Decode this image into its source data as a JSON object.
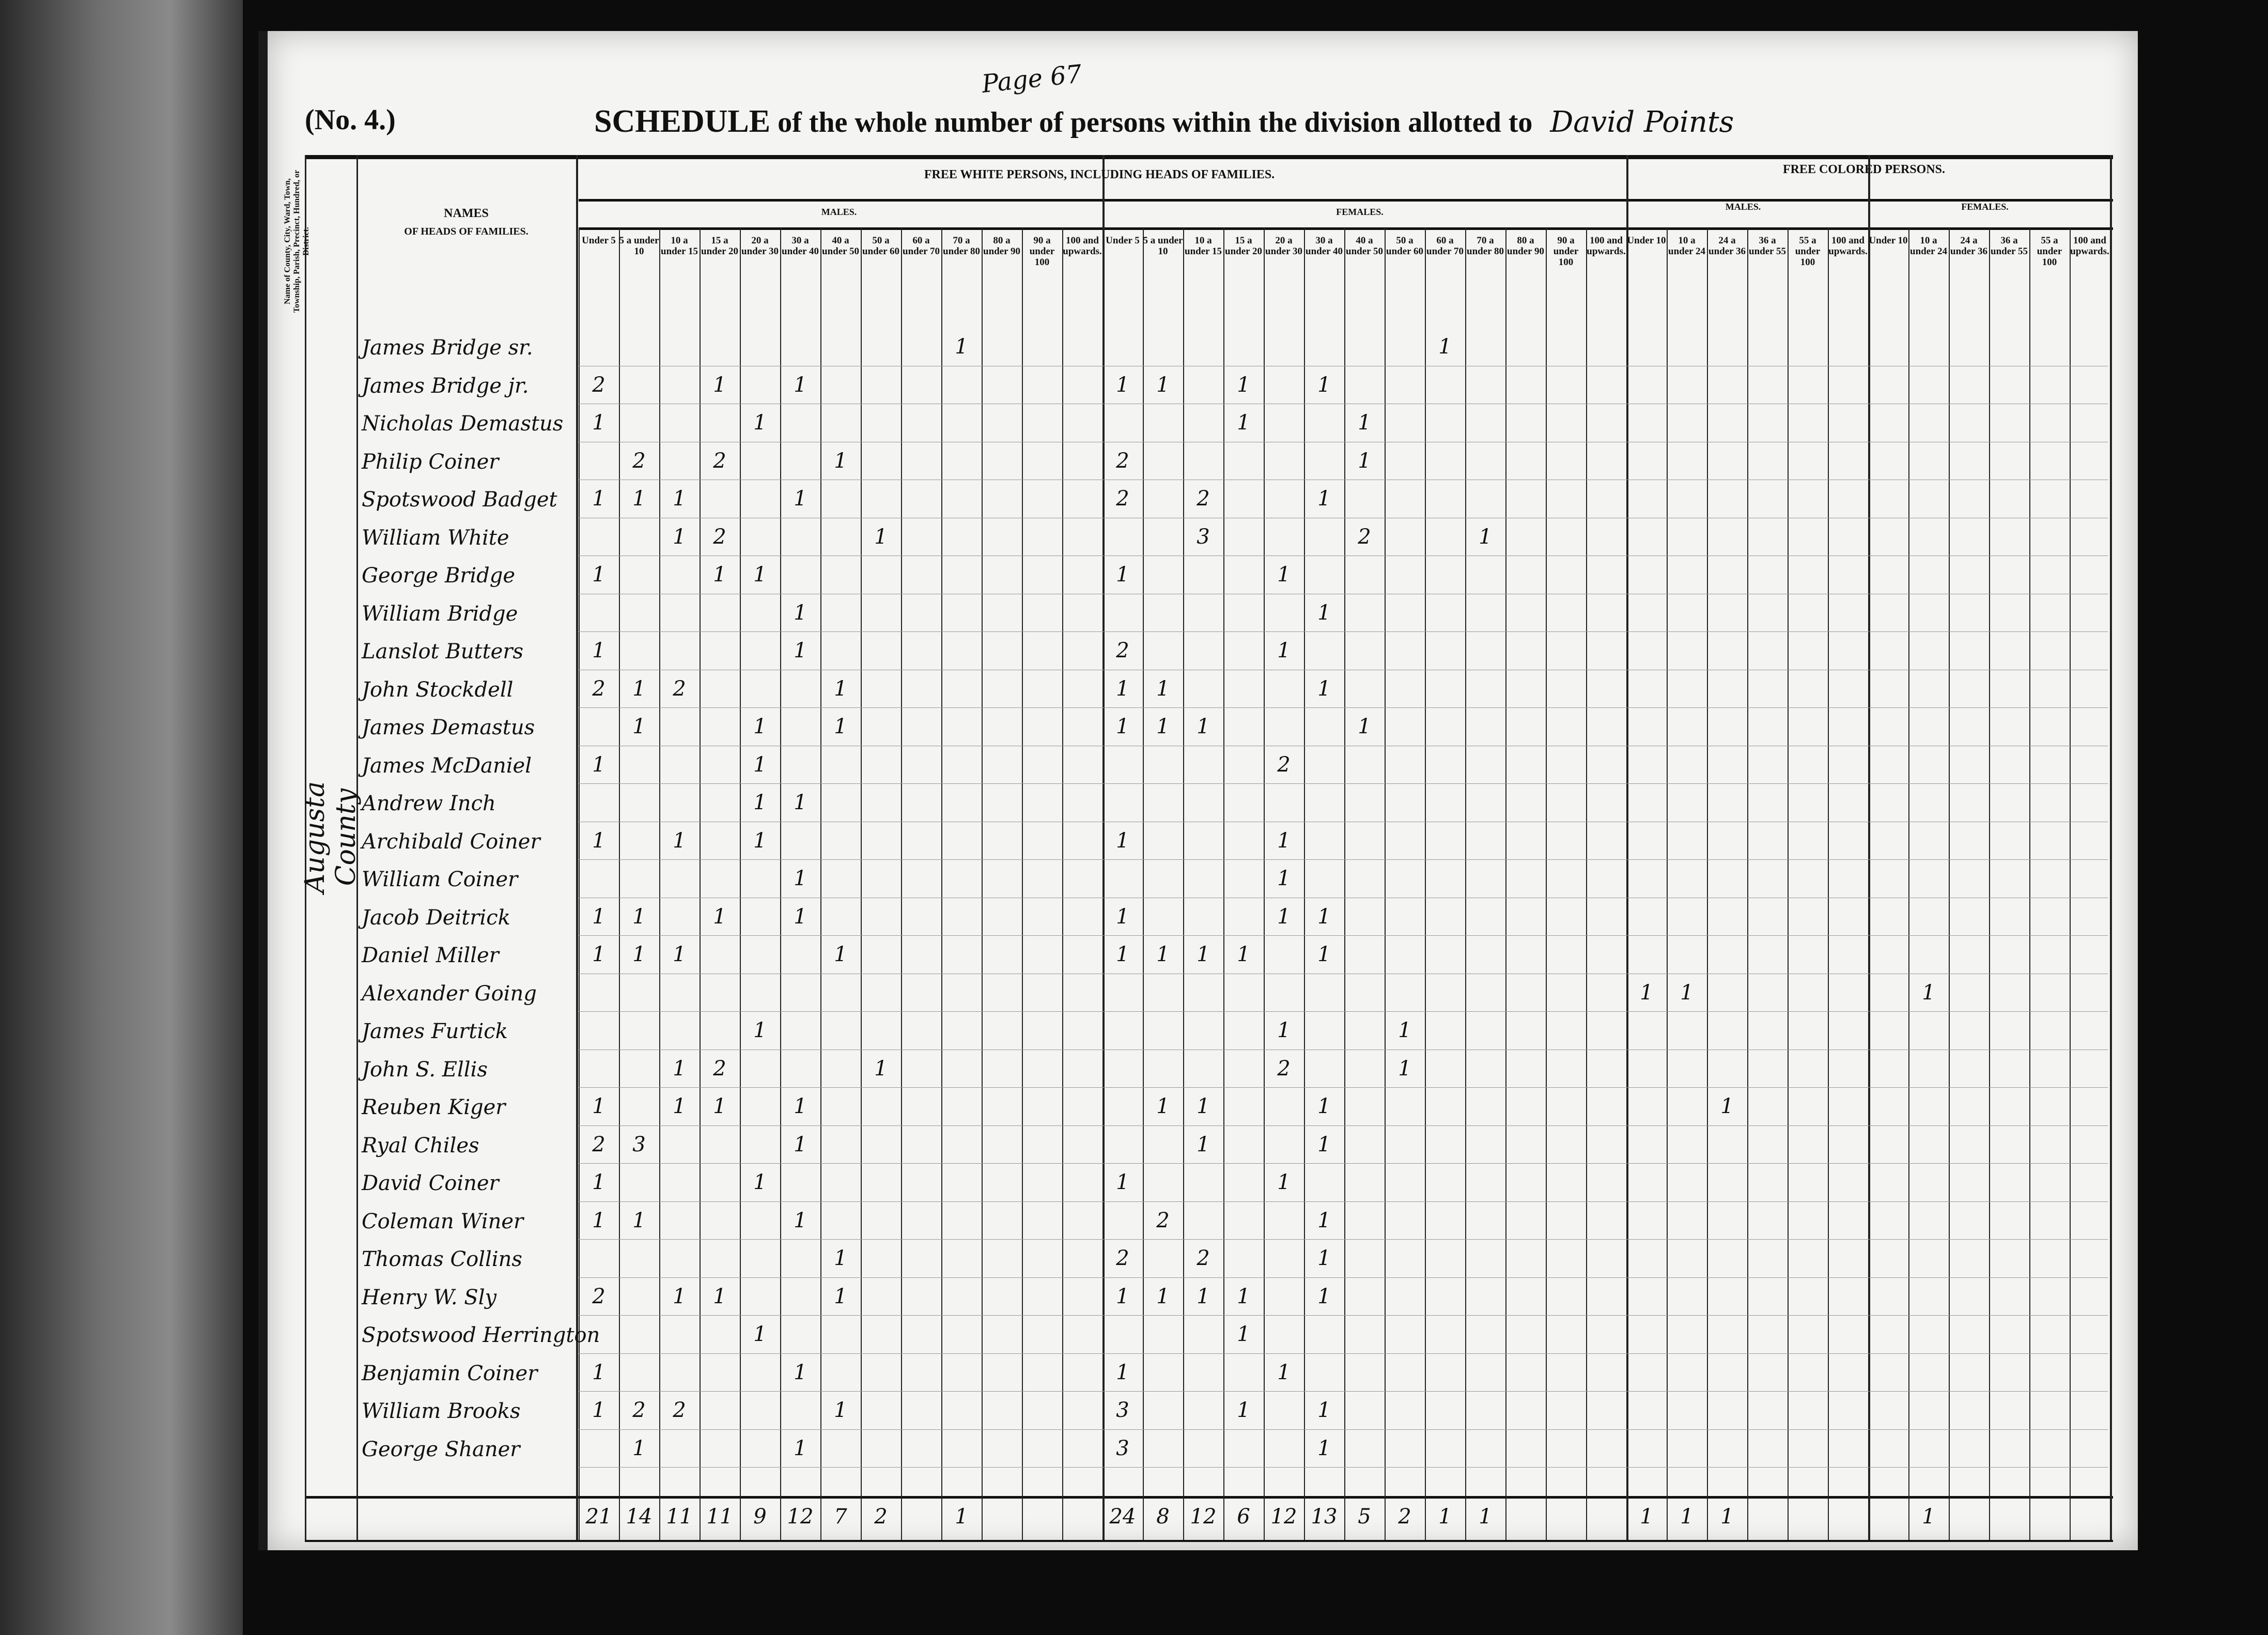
{
  "header": {
    "form_number": "(No. 4.)",
    "page_note": "Page 67",
    "title_prefix": "SCHEDULE",
    "title_rest": "of the whole number of persons within the division allotted to",
    "assistant_name": "David Points"
  },
  "columns": {
    "place_header": "Name of County, City, Ward, Town, Township, Parish, Precinct, Hundred, or District.",
    "names_header_1": "NAMES",
    "names_header_2": "OF HEADS OF FAMILIES.",
    "free_white_header": "FREE WHITE PERSONS, INCLUDING HEADS OF FAMILIES.",
    "free_colored_header": "FREE COLORED PERSONS.",
    "males": "MALES.",
    "females": "FEMALES.",
    "white_age_groups": [
      "Under 5",
      "5 a under 10",
      "10 a under 15",
      "15 a under 20",
      "20 a under 30",
      "30 a under 40",
      "40 a under 50",
      "50 a under 60",
      "60 a under 70",
      "70 a under 80",
      "80 a under 90",
      "90 a under 100",
      "100 and upwards."
    ],
    "colored_age_groups": [
      "Under 10",
      "10 a under 24",
      "24 a under 36",
      "36 a under 55",
      "55 a under 100",
      "100 and upwards."
    ]
  },
  "place": "Augusta County",
  "rows": [
    {
      "name": "James Bridge sr.",
      "wm": [
        "",
        "",
        "",
        "",
        "",
        "",
        "",
        "",
        "",
        "1",
        "",
        "",
        ""
      ],
      "wf": [
        "",
        "",
        "",
        "",
        "",
        "",
        "",
        "",
        "1",
        "",
        "",
        "",
        ""
      ],
      "cm": [
        "",
        "",
        "",
        "",
        "",
        ""
      ],
      "cf": [
        "",
        "",
        "",
        "",
        "",
        ""
      ]
    },
    {
      "name": "James Bridge jr.",
      "wm": [
        "2",
        "",
        "",
        "1",
        "",
        "1",
        "",
        "",
        "",
        "",
        "",
        "",
        ""
      ],
      "wf": [
        "1",
        "1",
        "",
        "1",
        "",
        "1",
        "",
        "",
        "",
        "",
        "",
        "",
        ""
      ],
      "cm": [
        "",
        "",
        "",
        "",
        "",
        ""
      ],
      "cf": [
        "",
        "",
        "",
        "",
        "",
        ""
      ]
    },
    {
      "name": "Nicholas Demastus",
      "wm": [
        "1",
        "",
        "",
        "",
        "1",
        "",
        "",
        "",
        "",
        "",
        "",
        "",
        ""
      ],
      "wf": [
        "",
        "",
        "",
        "1",
        "",
        "",
        "1",
        "",
        "",
        "",
        "",
        "",
        ""
      ],
      "cm": [
        "",
        "",
        "",
        "",
        "",
        ""
      ],
      "cf": [
        "",
        "",
        "",
        "",
        "",
        ""
      ]
    },
    {
      "name": "Philip Coiner",
      "wm": [
        "",
        "2",
        "",
        "2",
        "",
        "",
        "1",
        "",
        "",
        "",
        "",
        "",
        ""
      ],
      "wf": [
        "2",
        "",
        "",
        "",
        "",
        "",
        "1",
        "",
        "",
        "",
        "",
        "",
        ""
      ],
      "cm": [
        "",
        "",
        "",
        "",
        "",
        ""
      ],
      "cf": [
        "",
        "",
        "",
        "",
        "",
        ""
      ]
    },
    {
      "name": "Spotswood Badget",
      "wm": [
        "1",
        "1",
        "1",
        "",
        "",
        "1",
        "",
        "",
        "",
        "",
        "",
        "",
        ""
      ],
      "wf": [
        "2",
        "",
        "2",
        "",
        "",
        "1",
        "",
        "",
        "",
        "",
        "",
        "",
        ""
      ],
      "cm": [
        "",
        "",
        "",
        "",
        "",
        ""
      ],
      "cf": [
        "",
        "",
        "",
        "",
        "",
        ""
      ]
    },
    {
      "name": "William White",
      "wm": [
        "",
        "",
        "1",
        "2",
        "",
        "",
        "",
        "1",
        "",
        "",
        "",
        "",
        ""
      ],
      "wf": [
        "",
        "",
        "3",
        "",
        "",
        "",
        "2",
        "",
        "",
        "1",
        "",
        "",
        ""
      ],
      "cm": [
        "",
        "",
        "",
        "",
        "",
        ""
      ],
      "cf": [
        "",
        "",
        "",
        "",
        "",
        ""
      ]
    },
    {
      "name": "George Bridge",
      "wm": [
        "1",
        "",
        "",
        "1",
        "1",
        "",
        "",
        "",
        "",
        "",
        "",
        "",
        ""
      ],
      "wf": [
        "1",
        "",
        "",
        "",
        "1",
        "",
        "",
        "",
        "",
        "",
        "",
        "",
        ""
      ],
      "cm": [
        "",
        "",
        "",
        "",
        "",
        ""
      ],
      "cf": [
        "",
        "",
        "",
        "",
        "",
        ""
      ]
    },
    {
      "name": "William Bridge",
      "wm": [
        "",
        "",
        "",
        "",
        "",
        "1",
        "",
        "",
        "",
        "",
        "",
        "",
        ""
      ],
      "wf": [
        "",
        "",
        "",
        "",
        "",
        "1",
        "",
        "",
        "",
        "",
        "",
        "",
        ""
      ],
      "cm": [
        "",
        "",
        "",
        "",
        "",
        ""
      ],
      "cf": [
        "",
        "",
        "",
        "",
        "",
        ""
      ]
    },
    {
      "name": "Lanslot Butters",
      "wm": [
        "1",
        "",
        "",
        "",
        "",
        "1",
        "",
        "",
        "",
        "",
        "",
        "",
        ""
      ],
      "wf": [
        "2",
        "",
        "",
        "",
        "1",
        "",
        "",
        "",
        "",
        "",
        "",
        "",
        ""
      ],
      "cm": [
        "",
        "",
        "",
        "",
        "",
        ""
      ],
      "cf": [
        "",
        "",
        "",
        "",
        "",
        ""
      ]
    },
    {
      "name": "John Stockdell",
      "wm": [
        "2",
        "1",
        "2",
        "",
        "",
        "",
        "1",
        "",
        "",
        "",
        "",
        "",
        ""
      ],
      "wf": [
        "1",
        "1",
        "",
        "",
        "",
        "1",
        "",
        "",
        "",
        "",
        "",
        "",
        ""
      ],
      "cm": [
        "",
        "",
        "",
        "",
        "",
        ""
      ],
      "cf": [
        "",
        "",
        "",
        "",
        "",
        ""
      ]
    },
    {
      "name": "James Demastus",
      "wm": [
        "",
        "1",
        "",
        "",
        "1",
        "",
        "1",
        "",
        "",
        "",
        "",
        "",
        ""
      ],
      "wf": [
        "1",
        "1",
        "1",
        "",
        "",
        "",
        "1",
        "",
        "",
        "",
        "",
        "",
        ""
      ],
      "cm": [
        "",
        "",
        "",
        "",
        "",
        ""
      ],
      "cf": [
        "",
        "",
        "",
        "",
        "",
        ""
      ]
    },
    {
      "name": "James McDaniel",
      "wm": [
        "1",
        "",
        "",
        "",
        "1",
        "",
        "",
        "",
        "",
        "",
        "",
        "",
        ""
      ],
      "wf": [
        "",
        "",
        "",
        "",
        "2",
        "",
        "",
        "",
        "",
        "",
        "",
        "",
        ""
      ],
      "cm": [
        "",
        "",
        "",
        "",
        "",
        ""
      ],
      "cf": [
        "",
        "",
        "",
        "",
        "",
        ""
      ]
    },
    {
      "name": "Andrew Inch",
      "wm": [
        "",
        "",
        "",
        "",
        "1",
        "1",
        "",
        "",
        "",
        "",
        "",
        "",
        ""
      ],
      "wf": [
        "",
        "",
        "",
        "",
        "",
        "",
        "",
        "",
        "",
        "",
        "",
        "",
        ""
      ],
      "cm": [
        "",
        "",
        "",
        "",
        "",
        ""
      ],
      "cf": [
        "",
        "",
        "",
        "",
        "",
        ""
      ]
    },
    {
      "name": "Archibald Coiner",
      "wm": [
        "1",
        "",
        "1",
        "",
        "1",
        "",
        "",
        "",
        "",
        "",
        "",
        "",
        ""
      ],
      "wf": [
        "1",
        "",
        "",
        "",
        "1",
        "",
        "",
        "",
        "",
        "",
        "",
        "",
        ""
      ],
      "cm": [
        "",
        "",
        "",
        "",
        "",
        ""
      ],
      "cf": [
        "",
        "",
        "",
        "",
        "",
        ""
      ]
    },
    {
      "name": "William Coiner",
      "wm": [
        "",
        "",
        "",
        "",
        "",
        "1",
        "",
        "",
        "",
        "",
        "",
        "",
        ""
      ],
      "wf": [
        "",
        "",
        "",
        "",
        "1",
        "",
        "",
        "",
        "",
        "",
        "",
        "",
        ""
      ],
      "cm": [
        "",
        "",
        "",
        "",
        "",
        ""
      ],
      "cf": [
        "",
        "",
        "",
        "",
        "",
        ""
      ]
    },
    {
      "name": "Jacob Deitrick",
      "wm": [
        "1",
        "1",
        "",
        "1",
        "",
        "1",
        "",
        "",
        "",
        "",
        "",
        "",
        ""
      ],
      "wf": [
        "1",
        "",
        "",
        "",
        "1",
        "1",
        "",
        "",
        "",
        "",
        "",
        "",
        ""
      ],
      "cm": [
        "",
        "",
        "",
        "",
        "",
        ""
      ],
      "cf": [
        "",
        "",
        "",
        "",
        "",
        ""
      ]
    },
    {
      "name": "Daniel Miller",
      "wm": [
        "1",
        "1",
        "1",
        "",
        "",
        "",
        "1",
        "",
        "",
        "",
        "",
        "",
        ""
      ],
      "wf": [
        "1",
        "1",
        "1",
        "1",
        "",
        "1",
        "",
        "",
        "",
        "",
        "",
        "",
        ""
      ],
      "cm": [
        "",
        "",
        "",
        "",
        "",
        ""
      ],
      "cf": [
        "",
        "",
        "",
        "",
        "",
        ""
      ]
    },
    {
      "name": "Alexander Going",
      "wm": [
        "",
        "",
        "",
        "",
        "",
        "",
        "",
        "",
        "",
        "",
        "",
        "",
        ""
      ],
      "wf": [
        "",
        "",
        "",
        "",
        "",
        "",
        "",
        "",
        "",
        "",
        "",
        "",
        ""
      ],
      "cm": [
        "1",
        "1",
        "",
        "",
        "",
        ""
      ],
      "cf": [
        "",
        "1",
        "",
        "",
        "",
        ""
      ]
    },
    {
      "name": "James Furtick",
      "wm": [
        "",
        "",
        "",
        "",
        "1",
        "",
        "",
        "",
        "",
        "",
        "",
        "",
        ""
      ],
      "wf": [
        "",
        "",
        "",
        "",
        "1",
        "",
        "",
        "1",
        "",
        "",
        "",
        "",
        ""
      ],
      "cm": [
        "",
        "",
        "",
        "",
        "",
        ""
      ],
      "cf": [
        "",
        "",
        "",
        "",
        "",
        ""
      ]
    },
    {
      "name": "John S. Ellis",
      "wm": [
        "",
        "",
        "1",
        "2",
        "",
        "",
        "",
        "1",
        "",
        "",
        "",
        "",
        ""
      ],
      "wf": [
        "",
        "",
        "",
        "",
        "2",
        "",
        "",
        "1",
        "",
        "",
        "",
        "",
        ""
      ],
      "cm": [
        "",
        "",
        "",
        "",
        "",
        ""
      ],
      "cf": [
        "",
        "",
        "",
        "",
        "",
        ""
      ]
    },
    {
      "name": "Reuben Kiger",
      "wm": [
        "1",
        "",
        "1",
        "1",
        "",
        "1",
        "",
        "",
        "",
        "",
        "",
        "",
        ""
      ],
      "wf": [
        "",
        "1",
        "1",
        "",
        "",
        "1",
        "",
        "",
        "",
        "",
        "",
        "",
        ""
      ],
      "cm": [
        "",
        "",
        "1",
        "",
        "",
        ""
      ],
      "cf": [
        "",
        "",
        "",
        "",
        "",
        ""
      ]
    },
    {
      "name": "Ryal Chiles",
      "wm": [
        "2",
        "3",
        "",
        "",
        "",
        "1",
        "",
        "",
        "",
        "",
        "",
        "",
        ""
      ],
      "wf": [
        "",
        "",
        "1",
        "",
        "",
        "1",
        "",
        "",
        "",
        "",
        "",
        "",
        ""
      ],
      "cm": [
        "",
        "",
        "",
        "",
        "",
        ""
      ],
      "cf": [
        "",
        "",
        "",
        "",
        "",
        ""
      ]
    },
    {
      "name": "David Coiner",
      "wm": [
        "1",
        "",
        "",
        "",
        "1",
        "",
        "",
        "",
        "",
        "",
        "",
        "",
        ""
      ],
      "wf": [
        "1",
        "",
        "",
        "",
        "1",
        "",
        "",
        "",
        "",
        "",
        "",
        "",
        ""
      ],
      "cm": [
        "",
        "",
        "",
        "",
        "",
        ""
      ],
      "cf": [
        "",
        "",
        "",
        "",
        "",
        ""
      ]
    },
    {
      "name": "Coleman Winer",
      "wm": [
        "1",
        "1",
        "",
        "",
        "",
        "1",
        "",
        "",
        "",
        "",
        "",
        "",
        ""
      ],
      "wf": [
        "",
        "2",
        "",
        "",
        "",
        "1",
        "",
        "",
        "",
        "",
        "",
        "",
        ""
      ],
      "cm": [
        "",
        "",
        "",
        "",
        "",
        ""
      ],
      "cf": [
        "",
        "",
        "",
        "",
        "",
        ""
      ]
    },
    {
      "name": "Thomas Collins",
      "wm": [
        "",
        "",
        "",
        "",
        "",
        "",
        "1",
        "",
        "",
        "",
        "",
        "",
        ""
      ],
      "wf": [
        "2",
        "",
        "2",
        "",
        "",
        "1",
        "",
        "",
        "",
        "",
        "",
        "",
        ""
      ],
      "cm": [
        "",
        "",
        "",
        "",
        "",
        ""
      ],
      "cf": [
        "",
        "",
        "",
        "",
        "",
        ""
      ]
    },
    {
      "name": "Henry W. Sly",
      "wm": [
        "2",
        "",
        "1",
        "1",
        "",
        "",
        "1",
        "",
        "",
        "",
        "",
        "",
        ""
      ],
      "wf": [
        "1",
        "1",
        "1",
        "1",
        "",
        "1",
        "",
        "",
        "",
        "",
        "",
        "",
        ""
      ],
      "cm": [
        "",
        "",
        "",
        "",
        "",
        ""
      ],
      "cf": [
        "",
        "",
        "",
        "",
        "",
        ""
      ]
    },
    {
      "name": "Spotswood Herrington",
      "wm": [
        "",
        "",
        "",
        "",
        "1",
        "",
        "",
        "",
        "",
        "",
        "",
        "",
        ""
      ],
      "wf": [
        "",
        "",
        "",
        "1",
        "",
        "",
        "",
        "",
        "",
        "",
        "",
        "",
        ""
      ],
      "cm": [
        "",
        "",
        "",
        "",
        "",
        ""
      ],
      "cf": [
        "",
        "",
        "",
        "",
        "",
        ""
      ]
    },
    {
      "name": "Benjamin Coiner",
      "wm": [
        "1",
        "",
        "",
        "",
        "",
        "1",
        "",
        "",
        "",
        "",
        "",
        "",
        ""
      ],
      "wf": [
        "1",
        "",
        "",
        "",
        "1",
        "",
        "",
        "",
        "",
        "",
        "",
        "",
        ""
      ],
      "cm": [
        "",
        "",
        "",
        "",
        "",
        ""
      ],
      "cf": [
        "",
        "",
        "",
        "",
        "",
        ""
      ]
    },
    {
      "name": "William Brooks",
      "wm": [
        "1",
        "2",
        "2",
        "",
        "",
        "",
        "1",
        "",
        "",
        "",
        "",
        "",
        ""
      ],
      "wf": [
        "3",
        "",
        "",
        "1",
        "",
        "1",
        "",
        "",
        "",
        "",
        "",
        "",
        ""
      ],
      "cm": [
        "",
        "",
        "",
        "",
        "",
        ""
      ],
      "cf": [
        "",
        "",
        "",
        "",
        "",
        ""
      ]
    },
    {
      "name": "George Shaner",
      "wm": [
        "",
        "1",
        "",
        "",
        "",
        "1",
        "",
        "",
        "",
        "",
        "",
        "",
        ""
      ],
      "wf": [
        "3",
        "",
        "",
        "",
        "",
        "1",
        "",
        "",
        "",
        "",
        "",
        "",
        ""
      ],
      "cm": [
        "",
        "",
        "",
        "",
        "",
        ""
      ],
      "cf": [
        "",
        "",
        "",
        "",
        "",
        ""
      ]
    }
  ],
  "totals": {
    "wm": [
      "21",
      "14",
      "11",
      "11",
      "9",
      "12",
      "7",
      "2",
      "",
      "1",
      "",
      "",
      ""
    ],
    "wf": [
      "24",
      "8",
      "12",
      "6",
      "12",
      "13",
      "5",
      "2",
      "1",
      "1",
      "",
      "",
      ""
    ],
    "cm": [
      "1",
      "1",
      "1",
      "",
      "",
      ""
    ],
    "cf": [
      "",
      "1",
      "",
      "",
      "",
      ""
    ]
  }
}
